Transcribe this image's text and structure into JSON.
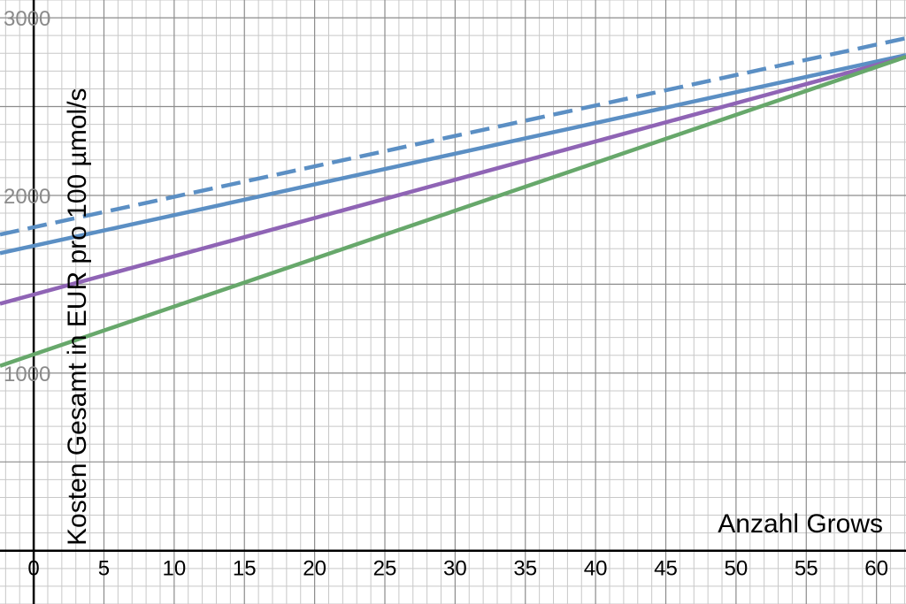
{
  "chart_data": {
    "type": "line",
    "title": "",
    "xlabel": "Anzahl Grows",
    "ylabel": "Kosten Gesamt in EUR pro 100 µmol/s",
    "xlim": [
      -2.4,
      62.1
    ],
    "ylim": [
      -300,
      3100
    ],
    "x_ticks": [
      0,
      5,
      10,
      15,
      20,
      25,
      30,
      35,
      40,
      45,
      50,
      55,
      60
    ],
    "x_tick_labels": [
      "0",
      "5",
      "10",
      "15",
      "20",
      "25",
      "30",
      "35",
      "40",
      "45",
      "50",
      "55",
      "60"
    ],
    "y_ticks": [
      1000,
      2000,
      3000
    ],
    "y_tick_labels": [
      "1000",
      "2000",
      "3000"
    ],
    "grid": true,
    "minor_grid": {
      "x_step": 1,
      "y_step": 100
    },
    "series": [
      {
        "color": "#5b8fc4",
        "style": "dashed",
        "x": [
          -2.4,
          62.1
        ],
        "y": [
          1780,
          2885
        ]
      },
      {
        "color": "#5b8fc4",
        "style": "solid",
        "x": [
          -2.4,
          62.1
        ],
        "y": [
          1675,
          2790
        ]
      },
      {
        "color": "#8f64b5",
        "style": "solid",
        "x": [
          -2.4,
          62.1
        ],
        "y": [
          1390,
          2780
        ]
      },
      {
        "color": "#67a86b",
        "style": "solid",
        "x": [
          -2.4,
          62.1
        ],
        "y": [
          1040,
          2780
        ]
      }
    ]
  }
}
